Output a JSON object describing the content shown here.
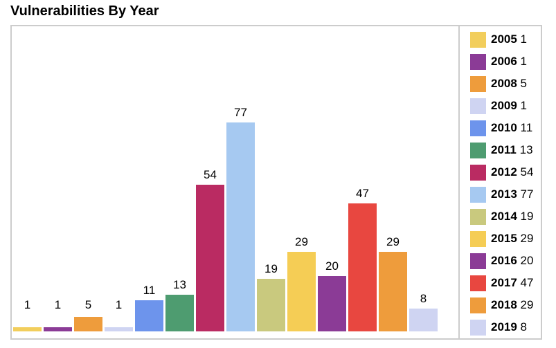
{
  "page": {
    "title": "Vulnerabilities By Year"
  },
  "chart_data": {
    "type": "bar",
    "title": "Vulnerabilities By Year",
    "categories": [
      "2005",
      "2006",
      "2008",
      "2009",
      "2010",
      "2011",
      "2012",
      "2013",
      "2014",
      "2015",
      "2016",
      "2017",
      "2018",
      "2019"
    ],
    "values": [
      1,
      1,
      5,
      1,
      11,
      13,
      54,
      77,
      19,
      29,
      20,
      47,
      29,
      8
    ],
    "colors": [
      "#f2ce5c",
      "#8b3b96",
      "#ee9c3c",
      "#cfd4f2",
      "#6d94ec",
      "#4e9c70",
      "#ba2b62",
      "#a6c9f1",
      "#c9c97e",
      "#f5cd55",
      "#8b3b96",
      "#e84740",
      "#ee9c3c",
      "#cfd4f2"
    ],
    "xlabel": "",
    "ylabel": "",
    "ylim": [
      0,
      77
    ],
    "grid": false,
    "value_labels_shown": true,
    "legend_position": "right",
    "legend_format": "year value"
  },
  "frame": {
    "border_color": "#cccccc",
    "background": "#ffffff"
  }
}
